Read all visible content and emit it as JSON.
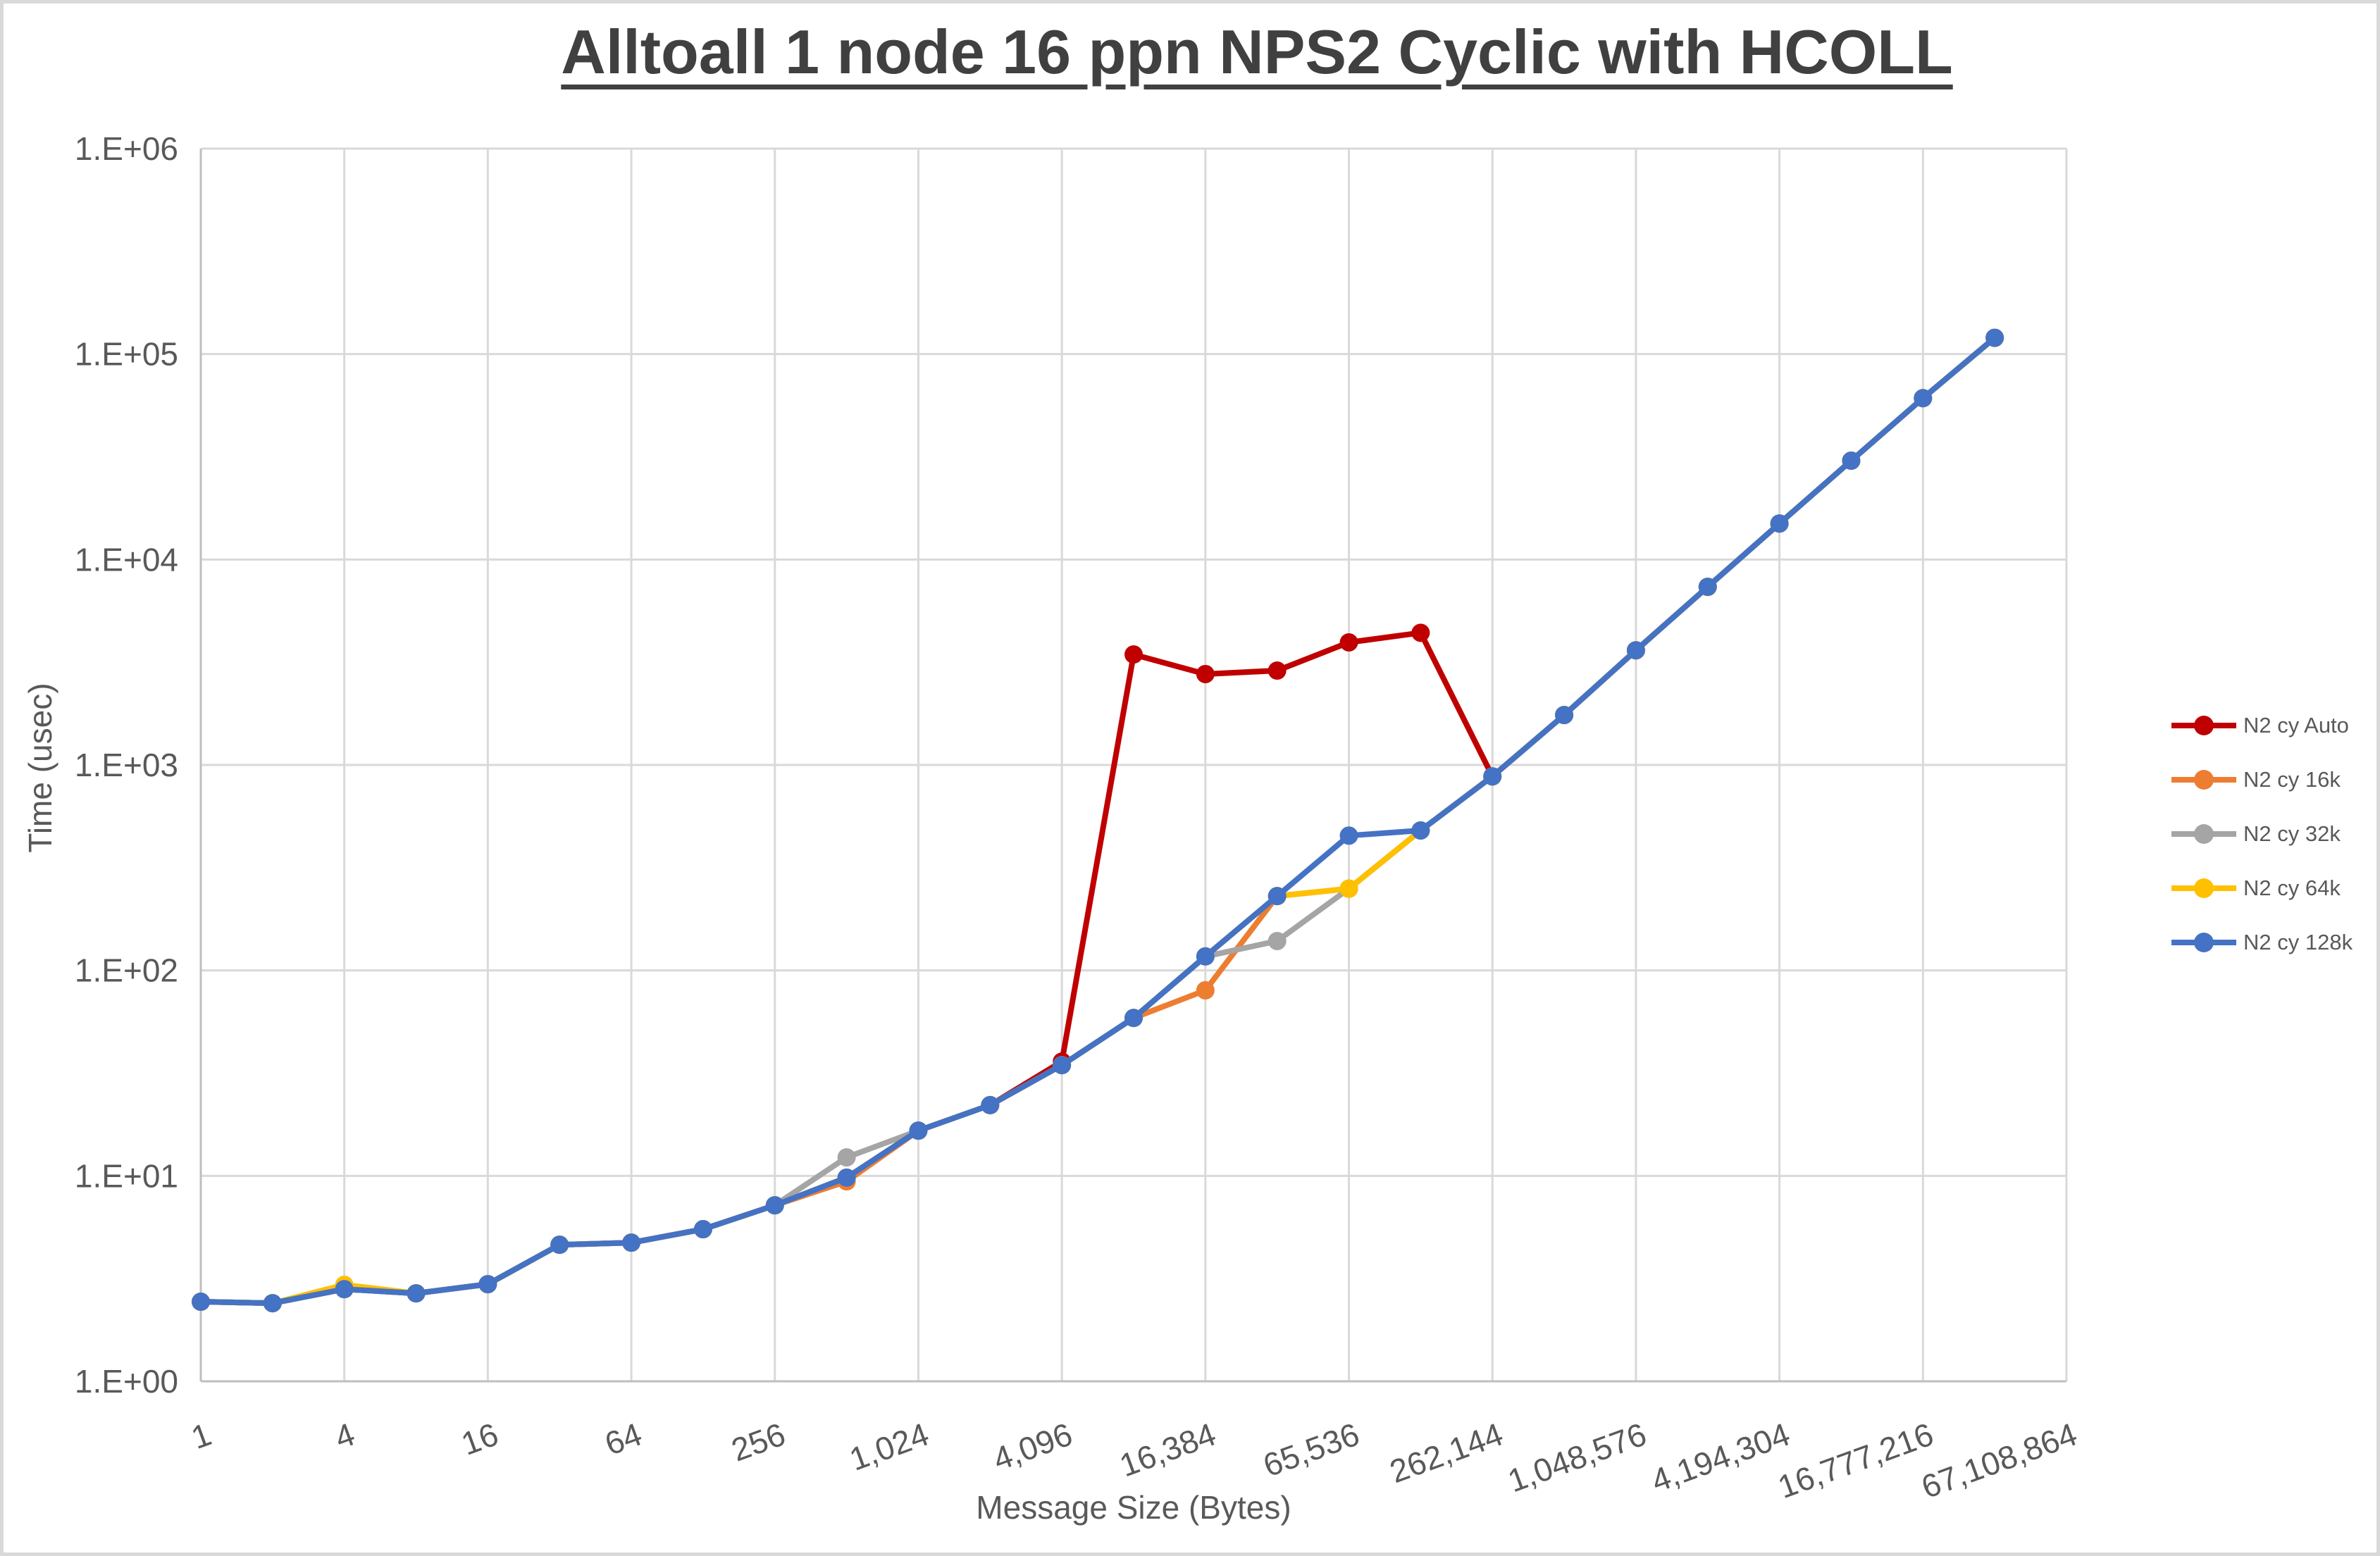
{
  "chart_data": {
    "type": "line",
    "title": "Alltoall 1 node 16 ppn NPS2 Cyclic with HCOLL",
    "xlabel": "Message Size (Bytes)",
    "ylabel": "Time (usec)",
    "x_scale": "log2 categories",
    "y_scale": "log10",
    "ylim": [
      1,
      1000000
    ],
    "grid": true,
    "legend_position": "right",
    "y_tick_labels": [
      "1.E+00",
      "1.E+01",
      "1.E+02",
      "1.E+03",
      "1.E+04",
      "1.E+05",
      "1.E+06"
    ],
    "x_tick_labels": [
      "1",
      "4",
      "16",
      "64",
      "256",
      "1,024",
      "4,096",
      "16,384",
      "65,536",
      "262,144",
      "1,048,576",
      "4,194,304",
      "16,777,216",
      "67,108,864"
    ],
    "x": [
      1,
      2,
      4,
      8,
      16,
      32,
      64,
      128,
      256,
      512,
      1024,
      2048,
      4096,
      8192,
      16384,
      32768,
      65536,
      131072,
      262144,
      524288,
      1048576,
      2097152,
      4194304,
      8388608,
      16777216,
      33554432
    ],
    "series": [
      {
        "name": "N2 cy Auto",
        "color": "#C00000",
        "values": [
          2.44,
          2.4,
          2.81,
          2.68,
          2.97,
          4.62,
          4.73,
          5.5,
          7.19,
          9.8,
          16.6,
          22.1,
          36,
          3450,
          2770,
          2880,
          3950,
          4400,
          880,
          1750,
          3615,
          7360,
          14970,
          30270,
          61000,
          120000
        ]
      },
      {
        "name": "N2 cy 16k",
        "color": "#ED7D31",
        "values": [
          2.44,
          2.4,
          2.81,
          2.68,
          2.97,
          4.62,
          4.73,
          5.5,
          7.19,
          9.4,
          16.6,
          22.1,
          34.6,
          58.7,
          80,
          230,
          250,
          480,
          880,
          1750,
          3615,
          7360,
          14970,
          30270,
          61000,
          120000
        ]
      },
      {
        "name": "N2 cy 32k",
        "color": "#A5A5A5",
        "values": [
          2.44,
          2.4,
          2.81,
          2.68,
          2.97,
          4.62,
          4.73,
          5.5,
          7.19,
          12.3,
          16.6,
          22.1,
          34.6,
          58.7,
          117,
          139,
          250,
          480,
          880,
          1750,
          3615,
          7360,
          14970,
          30270,
          61000,
          120000
        ]
      },
      {
        "name": "N2 cy 64k",
        "color": "#FFC000",
        "values": [
          2.44,
          2.4,
          2.95,
          2.68,
          2.97,
          4.62,
          4.73,
          5.5,
          7.19,
          9.8,
          16.6,
          22.1,
          34.6,
          58.7,
          117,
          230,
          250,
          480,
          880,
          1750,
          3615,
          7360,
          14970,
          30270,
          61000,
          120000
        ]
      },
      {
        "name": "N2 cy 128k",
        "color": "#4472C4",
        "values": [
          2.44,
          2.4,
          2.81,
          2.68,
          2.97,
          4.62,
          4.73,
          5.5,
          7.19,
          9.8,
          16.6,
          22.1,
          34.6,
          58.7,
          117,
          230,
          453,
          480,
          880,
          1750,
          3615,
          7360,
          14970,
          30270,
          61000,
          120000
        ]
      }
    ],
    "colors": {
      "gridline": "#D9D9D9",
      "axis_line": "#BFBFBF",
      "tick_text": "#595959",
      "title_text": "#404040"
    }
  }
}
